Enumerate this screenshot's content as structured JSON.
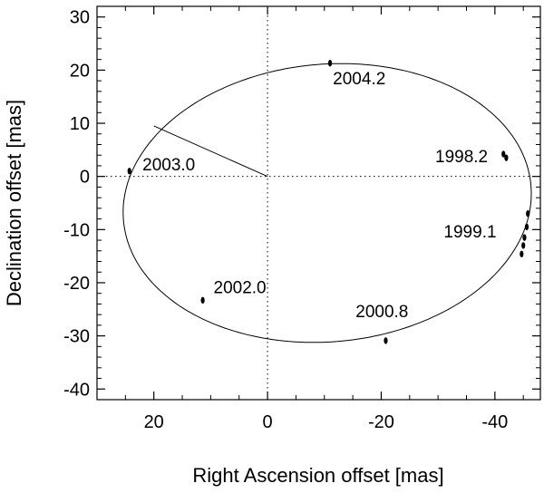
{
  "chart_data": {
    "type": "scatter",
    "xlabel": "Right Ascension offset [mas]",
    "ylabel": "Declination offset [mas]",
    "xlim": [
      30,
      -48
    ],
    "ylim": [
      -42,
      32
    ],
    "x_reversed": true,
    "xticks": [
      20,
      0,
      -20,
      -40
    ],
    "xtick_labels": [
      "20",
      "0",
      "-20",
      "-40"
    ],
    "yticks": [
      30,
      20,
      10,
      0,
      -10,
      -20,
      -30,
      -40
    ],
    "ytick_labels": [
      "30",
      "20",
      "10",
      "0",
      "-10",
      "-20",
      "-30",
      "-40"
    ],
    "grid": false,
    "zero_lines": "dotted",
    "orbit": {
      "center": [
        -10.5,
        -5
      ],
      "semi_axes": [
        36,
        26.1
      ],
      "rotation_deg": -6
    },
    "periastron_line": [
      [
        0,
        0
      ],
      [
        20,
        9.5
      ]
    ],
    "points": [
      {
        "label": "1998.2",
        "x": -41.5,
        "y": 4.2
      },
      {
        "label": "1998.2",
        "x": -42.0,
        "y": 3.5
      },
      {
        "label": "1999.1",
        "x": -45.8,
        "y": -7.0
      },
      {
        "label": "1999.1",
        "x": -45.6,
        "y": -9.5
      },
      {
        "label": "1999.1",
        "x": -45.2,
        "y": -11.5
      },
      {
        "label": "1999.1",
        "x": -45.0,
        "y": -13.0
      },
      {
        "label": "1999.1",
        "x": -44.7,
        "y": -14.6
      },
      {
        "label": "2000.8",
        "x": -20.8,
        "y": -30.9
      },
      {
        "label": "2002.0",
        "x": 11.4,
        "y": -23.3
      },
      {
        "label": "2003.0",
        "x": 24.3,
        "y": 1.0
      },
      {
        "label": "2004.2",
        "x": -11.0,
        "y": 21.3
      }
    ],
    "annotations": [
      {
        "text": "2004.2",
        "x": -11.5,
        "y": 17.3
      },
      {
        "text": "1998.2",
        "x": -29.5,
        "y": 2.7
      },
      {
        "text": "1999.1",
        "x": -31.0,
        "y": -11.5
      },
      {
        "text": "2000.8",
        "x": -15.5,
        "y": -26.5
      },
      {
        "text": "2002.0",
        "x": 9.5,
        "y": -22.0
      },
      {
        "text": "2003.0",
        "x": 22.0,
        "y": 1.1
      }
    ]
  }
}
